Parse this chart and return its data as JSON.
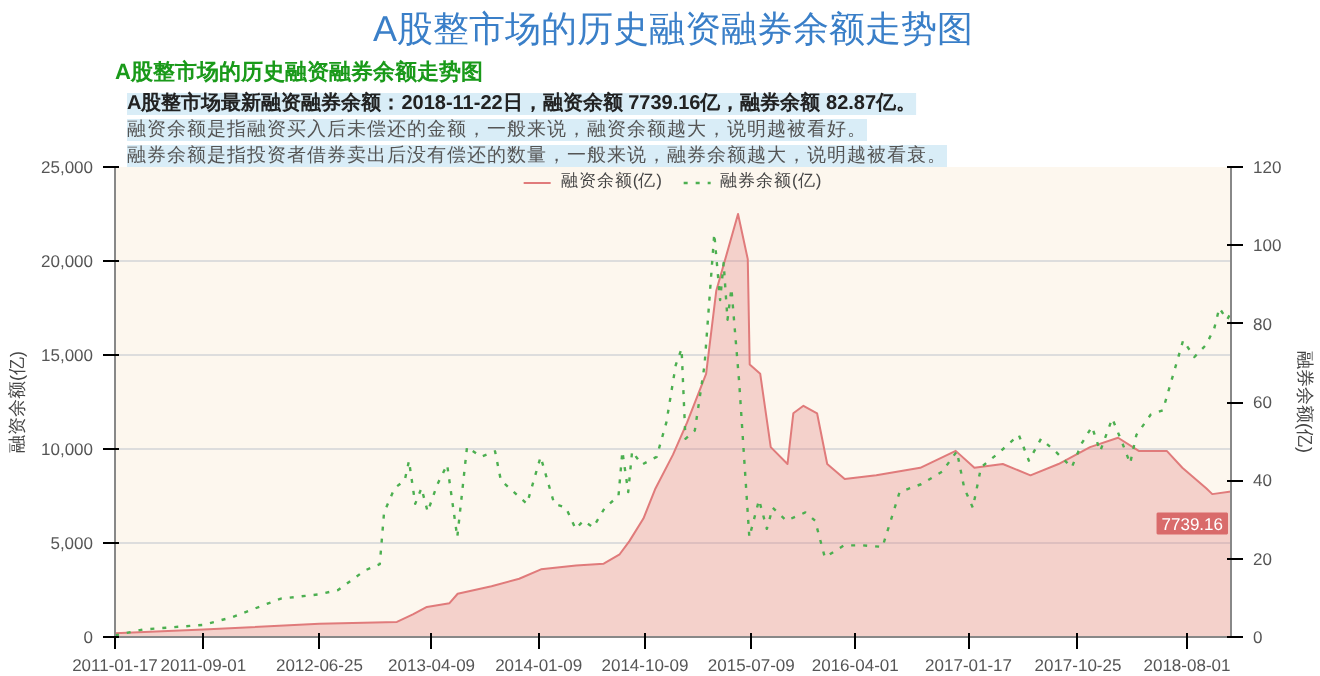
{
  "chart_data": {
    "type": "area",
    "title": "A股整市场的历史融资融券余额走势图",
    "subtitle": "A股整市场的历史融资融券余额走势图",
    "ylabel": "融资余额(亿)",
    "y2label": "融券余额(亿)",
    "series": [
      {
        "name": "融资余额(亿)",
        "color": "#e07b7b",
        "x": [
          "2011-01-17",
          "2011-09-01",
          "2012-06-25",
          "2013-01-10",
          "2013-02-20",
          "2013-03-28",
          "2013-05-25",
          "2013-06-15",
          "2013-09-10",
          "2013-11-20",
          "2014-01-15",
          "2014-04-15",
          "2014-06-25",
          "2014-08-05",
          "2014-08-30",
          "2014-10-05",
          "2014-11-05",
          "2014-12-20",
          "2015-01-25",
          "2015-03-15",
          "2015-04-10",
          "2015-06-05",
          "2015-06-30",
          "2015-07-05",
          "2015-08-01",
          "2015-08-28",
          "2015-10-10",
          "2015-10-25",
          "2015-11-20",
          "2015-12-25",
          "2016-01-20",
          "2016-03-05",
          "2016-05-25",
          "2016-09-15",
          "2016-12-15",
          "2017-02-01",
          "2017-04-15",
          "2017-06-25",
          "2017-09-05",
          "2017-11-25",
          "2018-02-05",
          "2018-03-30",
          "2018-06-10",
          "2018-07-20",
          "2018-09-20",
          "2018-10-05",
          "2018-11-22"
        ],
        "values": [
          200,
          400,
          700,
          800,
          1200,
          1600,
          1800,
          2300,
          2700,
          3100,
          3600,
          3800,
          3900,
          4400,
          5100,
          6300,
          7900,
          9700,
          11400,
          14000,
          18400,
          22500,
          20100,
          14500,
          14000,
          10100,
          9200,
          11900,
          12300,
          11900,
          9200,
          8400,
          8600,
          9000,
          9900,
          9000,
          9200,
          8600,
          9200,
          10100,
          10600,
          9900,
          9900,
          9000,
          7900,
          7600,
          7739.16
        ]
      },
      {
        "name": "融券余额(亿)",
        "type": "line",
        "axis": "y2",
        "line_style": "dotted",
        "color": "#4caf50",
        "x": [
          "2011-01-17",
          "2011-03-29",
          "2011-09-01",
          "2011-11-12",
          "2012-03-18",
          "2012-06-25",
          "2012-08-12",
          "2012-10-20",
          "2012-11-27",
          "2012-12-08",
          "2013-01-04",
          "2013-01-30",
          "2013-02-10",
          "2013-02-26",
          "2013-03-14",
          "2013-03-30",
          "2013-04-24",
          "2013-05-19",
          "2013-06-14",
          "2013-07-09",
          "2013-08-14",
          "2013-09-19",
          "2013-10-04",
          "2013-12-10",
          "2014-01-14",
          "2014-02-18",
          "2014-03-20",
          "2014-04-14",
          "2014-05-04",
          "2014-05-29",
          "2014-06-28",
          "2014-08-02",
          "2014-08-12",
          "2014-08-27",
          "2014-09-06",
          "2014-10-01",
          "2014-11-08",
          "2014-12-03",
          "2014-12-27",
          "2015-01-11",
          "2015-01-21",
          "2015-02-14",
          "2015-03-11",
          "2015-04-05",
          "2015-04-20",
          "2015-04-29",
          "2015-05-09",
          "2015-05-19",
          "2015-06-08",
          "2015-07-04",
          "2015-07-29",
          "2015-08-18",
          "2015-09-02",
          "2015-10-07",
          "2015-11-25",
          "2015-12-20",
          "2016-01-14",
          "2016-03-03",
          "2016-04-21",
          "2016-06-10",
          "2016-07-24",
          "2016-09-17",
          "2016-11-10",
          "2016-12-18",
          "2017-01-06",
          "2017-01-28",
          "2017-02-18",
          "2017-04-09",
          "2017-05-26",
          "2017-06-21",
          "2017-07-22",
          "2017-08-28",
          "2017-10-09",
          "2017-11-04",
          "2017-11-30",
          "2017-12-21",
          "2018-01-21",
          "2018-02-16",
          "2018-03-08",
          "2018-03-24",
          "2018-04-30",
          "2018-05-31",
          "2018-07-22",
          "2018-08-20",
          "2018-09-19",
          "2018-10-10",
          "2018-10-23",
          "2018-11-12",
          "2018-11-22"
        ],
        "values": [
          0.4,
          1.9,
          3.1,
          5,
          9.8,
          10.9,
          12,
          17,
          18.6,
          31.8,
          38,
          40,
          45,
          34,
          38,
          32,
          39,
          44,
          25.5,
          48.5,
          46,
          47.4,
          40,
          34,
          46,
          34,
          33,
          27.6,
          29.7,
          28,
          33,
          36,
          47.4,
          37,
          47.4,
          44,
          46,
          54.8,
          69.4,
          73.6,
          50.6,
          52.7,
          69.4,
          103,
          86,
          95.5,
          81,
          89,
          65,
          25.5,
          35,
          27.6,
          33,
          29.7,
          31.8,
          29.7,
          20.3,
          23.4,
          23.4,
          23,
          37,
          39,
          42.2,
          47.4,
          38,
          33,
          43.3,
          47.4,
          51.6,
          45,
          50.6,
          47.4,
          43.3,
          49.5,
          53.7,
          47.4,
          55.8,
          49.5,
          44.3,
          51.6,
          56.8,
          57.9,
          75.7,
          71.5,
          74.6,
          78.8,
          84,
          81,
          82.87
        ]
      }
    ],
    "xlim": [
      "2011-01-17",
      "2018-11-22"
    ],
    "xticks": [
      "2011-01-17",
      "2011-09-01",
      "2012-06-25",
      "2013-04-09",
      "2014-01-09",
      "2014-10-09",
      "2015-07-09",
      "2016-04-01",
      "2017-01-17",
      "2017-10-25",
      "2018-08-01"
    ],
    "ylim": [
      0,
      25000
    ],
    "yticks": [
      0,
      {
        "value": 5000,
        "label": "5,000"
      },
      {
        "value": 10000,
        "label": "10,000"
      },
      {
        "value": 15000,
        "label": "15,000"
      },
      {
        "value": 20000,
        "label": "20,000"
      },
      {
        "value": 25000,
        "label": "25,000"
      }
    ],
    "y2lim": [
      0,
      120
    ],
    "y2ticks": [
      0,
      20,
      40,
      60,
      80,
      100,
      120
    ],
    "grid": "y",
    "legend": "top",
    "annotations": [
      "A股整市场最新融资融券余额：2018-11-22日，融资余额 7739.16亿，融券余额 82.87亿。",
      "融资余额是指融资买入后未偿还的金额，一般来说，融资余额越大，说明越被看好。",
      "融券余额是指投资者借券卖出后没有偿还的数量，一般来说，融券余额越大，说明越被看衰。",
      {
        "text": "7739.16",
        "x": "2018-11-22",
        "y": 7739.16
      }
    ]
  }
}
